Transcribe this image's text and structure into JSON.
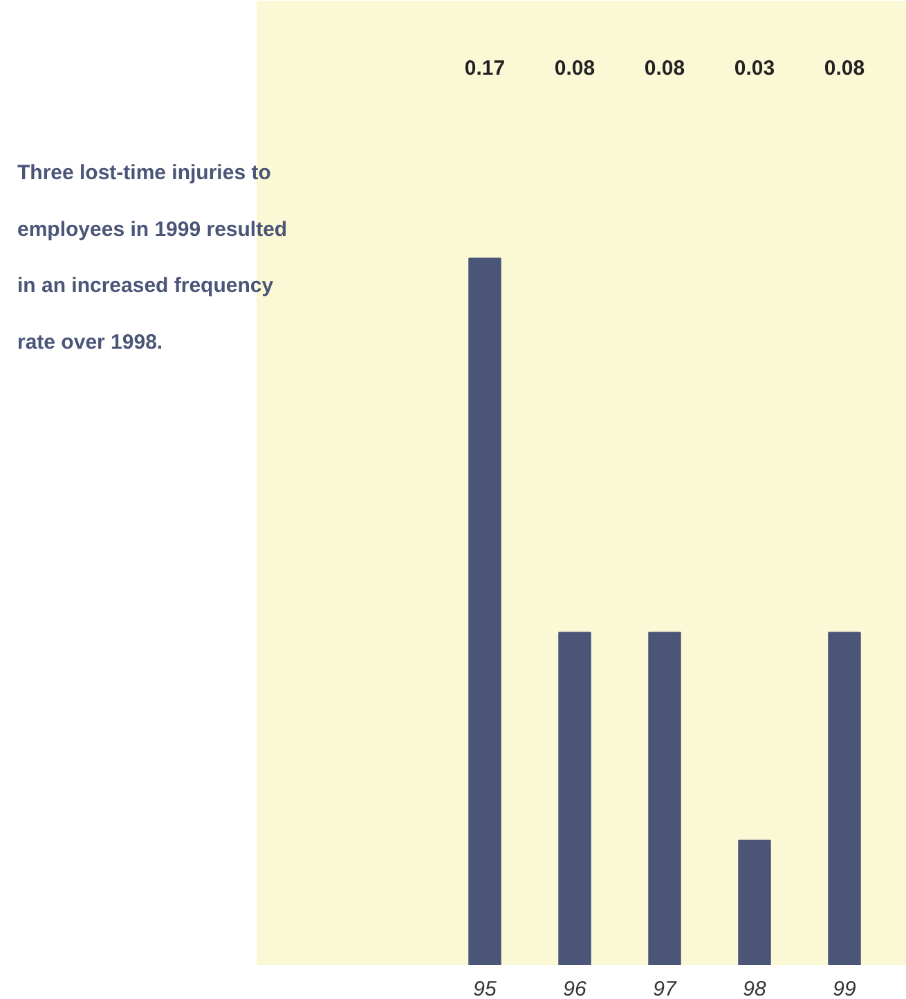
{
  "chart_data": {
    "type": "bar",
    "categories": [
      "95",
      "96",
      "97",
      "98",
      "99"
    ],
    "values": [
      0.17,
      0.08,
      0.08,
      0.03,
      0.08
    ],
    "color": "#4a5577",
    "data_labels": true,
    "annotations": [
      "Three lost-time injuries to employees in 1999 resulted in an increased frequency rate over 1998."
    ]
  }
}
